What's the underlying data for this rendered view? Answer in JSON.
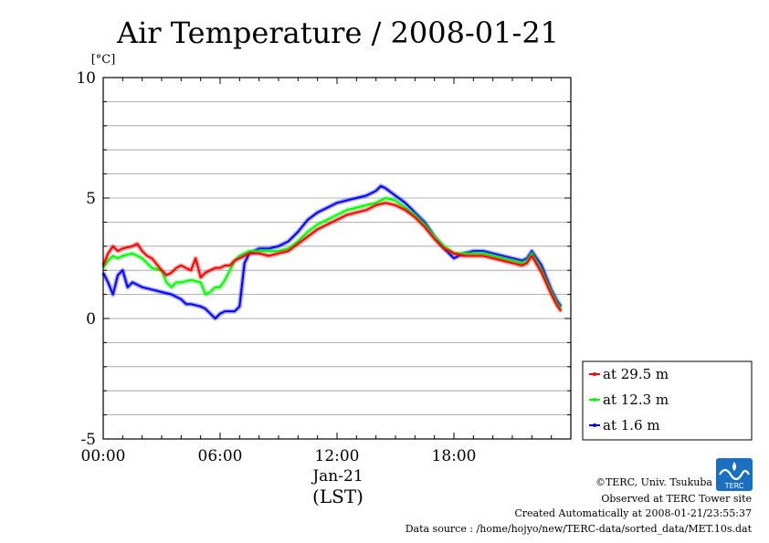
{
  "chart_data": {
    "type": "line",
    "title": "Air Temperature / 2008-01-21",
    "ylabel": "[°C]",
    "xlabel": "(LST)",
    "x_date_label": "Jan-21",
    "xlim": [
      0,
      24
    ],
    "ylim": [
      -5,
      10
    ],
    "x_ticks": [
      {
        "value": 0,
        "label": "00:00"
      },
      {
        "value": 6,
        "label": "06:00"
      },
      {
        "value": 12,
        "label": "12:00"
      },
      {
        "value": 18,
        "label": "18:00"
      }
    ],
    "y_ticks": [
      {
        "value": -5,
        "label": "-5"
      },
      {
        "value": 0,
        "label": "0"
      },
      {
        "value": 5,
        "label": "5"
      },
      {
        "value": 10,
        "label": "10"
      }
    ],
    "grid": true,
    "legend_position": "bottom-right, outside plot",
    "x_unit": "hour (LST)",
    "series": [
      {
        "name": "at 29.5 m",
        "color": "#ff0000",
        "x": [
          0,
          0.25,
          0.5,
          0.75,
          1,
          1.5,
          1.75,
          2,
          2.25,
          2.5,
          3,
          3.25,
          3.5,
          3.75,
          4,
          4.25,
          4.5,
          4.75,
          5,
          5.25,
          5.5,
          5.75,
          6,
          6.25,
          6.5,
          6.75,
          7,
          7.5,
          8,
          8.5,
          9,
          9.5,
          10,
          10.5,
          11,
          11.5,
          12,
          12.5,
          13,
          13.5,
          14,
          14.5,
          15,
          15.5,
          16,
          16.5,
          17,
          17.5,
          18,
          18.5,
          19,
          19.5,
          20,
          20.5,
          21,
          21.5,
          21.75,
          22,
          22.5,
          23,
          23.25,
          23.5
        ],
        "values": [
          2.2,
          2.7,
          3.0,
          2.8,
          2.9,
          3.0,
          3.1,
          2.8,
          2.6,
          2.5,
          2.0,
          1.8,
          1.9,
          2.1,
          2.2,
          2.1,
          2.0,
          2.5,
          1.7,
          1.9,
          2.0,
          2.1,
          2.1,
          2.2,
          2.2,
          2.4,
          2.5,
          2.7,
          2.7,
          2.6,
          2.7,
          2.8,
          3.1,
          3.4,
          3.7,
          3.9,
          4.1,
          4.3,
          4.4,
          4.5,
          4.7,
          4.8,
          4.7,
          4.5,
          4.2,
          3.8,
          3.3,
          2.9,
          2.7,
          2.6,
          2.6,
          2.6,
          2.5,
          2.4,
          2.3,
          2.2,
          2.3,
          2.6,
          1.9,
          1.0,
          0.6,
          0.3
        ]
      },
      {
        "name": "at 12.3 m",
        "color": "#00ff00",
        "x": [
          0,
          0.25,
          0.5,
          0.75,
          1,
          1.5,
          1.75,
          2,
          2.25,
          2.5,
          3,
          3.25,
          3.5,
          3.75,
          4,
          4.5,
          5,
          5.25,
          5.5,
          5.75,
          6,
          6.25,
          6.5,
          6.75,
          7,
          7.5,
          8,
          8.5,
          9,
          9.5,
          10,
          10.5,
          11,
          11.5,
          12,
          12.5,
          13,
          13.5,
          14,
          14.5,
          15,
          15.5,
          16,
          16.5,
          17,
          17.5,
          18,
          18.5,
          19,
          19.5,
          20,
          20.5,
          21,
          21.5,
          21.75,
          22,
          22.5,
          23,
          23.25,
          23.5
        ],
        "values": [
          2.1,
          2.4,
          2.6,
          2.5,
          2.6,
          2.7,
          2.6,
          2.5,
          2.3,
          2.1,
          2.0,
          1.5,
          1.3,
          1.5,
          1.5,
          1.6,
          1.5,
          1.0,
          1.1,
          1.3,
          1.3,
          1.6,
          2.0,
          2.4,
          2.6,
          2.8,
          2.8,
          2.8,
          2.8,
          2.9,
          3.2,
          3.6,
          3.9,
          4.1,
          4.3,
          4.5,
          4.6,
          4.7,
          4.8,
          5.0,
          4.9,
          4.6,
          4.3,
          3.9,
          3.4,
          3.0,
          2.7,
          2.7,
          2.7,
          2.7,
          2.6,
          2.5,
          2.4,
          2.3,
          2.4,
          2.7,
          2.0,
          1.1,
          0.7,
          0.4
        ]
      },
      {
        "name": "at 1.6 m",
        "color": "#0000ff",
        "x": [
          0,
          0.25,
          0.5,
          0.75,
          1,
          1.25,
          1.5,
          2,
          2.5,
          3,
          3.5,
          4,
          4.25,
          4.5,
          5,
          5.25,
          5.5,
          5.75,
          6,
          6.25,
          6.5,
          6.75,
          7,
          7.25,
          7.5,
          8,
          8.5,
          9,
          9.5,
          10,
          10.5,
          11,
          11.5,
          12,
          12.5,
          13,
          13.5,
          14,
          14.25,
          14.5,
          15,
          15.5,
          16,
          16.5,
          17,
          17.5,
          18,
          18.5,
          19,
          19.5,
          20,
          20.5,
          21,
          21.5,
          21.75,
          22,
          22.5,
          23,
          23.25,
          23.5
        ],
        "values": [
          1.9,
          1.5,
          1.0,
          1.8,
          2.0,
          1.3,
          1.5,
          1.3,
          1.2,
          1.1,
          1.0,
          0.8,
          0.6,
          0.6,
          0.5,
          0.4,
          0.2,
          0.0,
          0.2,
          0.3,
          0.3,
          0.3,
          0.5,
          2.3,
          2.7,
          2.9,
          2.9,
          3.0,
          3.2,
          3.6,
          4.1,
          4.4,
          4.6,
          4.8,
          4.9,
          5.0,
          5.1,
          5.3,
          5.5,
          5.4,
          5.1,
          4.8,
          4.4,
          4.0,
          3.4,
          2.9,
          2.5,
          2.7,
          2.8,
          2.8,
          2.7,
          2.6,
          2.5,
          2.4,
          2.5,
          2.8,
          2.2,
          1.2,
          0.8,
          0.5
        ]
      }
    ]
  },
  "credits": {
    "copyright": "©TERC, Univ. Tsukuba",
    "observed": "Observed at TERC Tower site",
    "created": "Created Automatically at 2008-01-21/23:55:37",
    "source": "Data source : /home/hojyo/new/TERC-data/sorted_data/MET.10s.dat",
    "logo_text": "TERC"
  }
}
